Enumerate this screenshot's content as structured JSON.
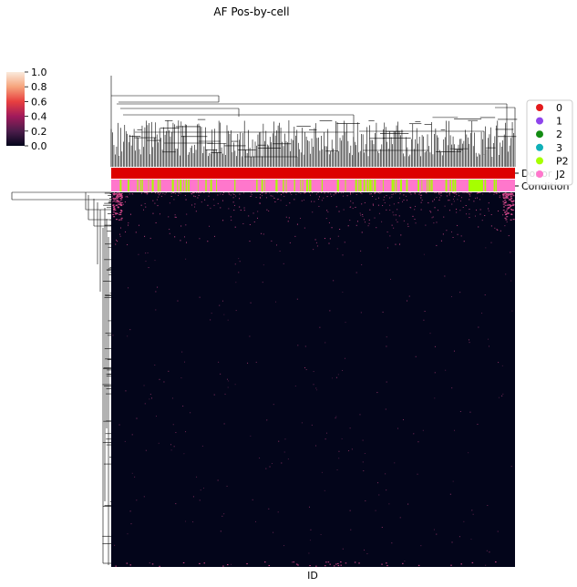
{
  "chart_data": {
    "type": "heatmap",
    "title": "AF Pos-by-cell",
    "xlabel": "ID",
    "ylabel": "",
    "colorbar": {
      "ticks": [
        "1.0",
        "0.8",
        "0.6",
        "0.4",
        "0.2",
        "0.0"
      ],
      "range": [
        0.0,
        1.0
      ],
      "colormap": "rocket"
    },
    "row_annotations": [
      {
        "label": "Donor",
        "categories": [
          "0"
        ]
      },
      {
        "label": "Condition",
        "categories": [
          "P2",
          "J2"
        ]
      }
    ],
    "legend": {
      "position": "right",
      "entries": [
        {
          "label": "0",
          "color": "#e31a1c"
        },
        {
          "label": "1",
          "color": "#8e44ec"
        },
        {
          "label": "2",
          "color": "#138c13"
        },
        {
          "label": "3",
          "color": "#10b0b8"
        },
        {
          "label": "P2",
          "color": "#a6ff00"
        },
        {
          "label": "J2",
          "color": "#ff77cc"
        }
      ]
    },
    "heatmap_background": "#03051a",
    "highlight_color": "#d2488a",
    "dendrograms": {
      "top": true,
      "left": true
    }
  }
}
